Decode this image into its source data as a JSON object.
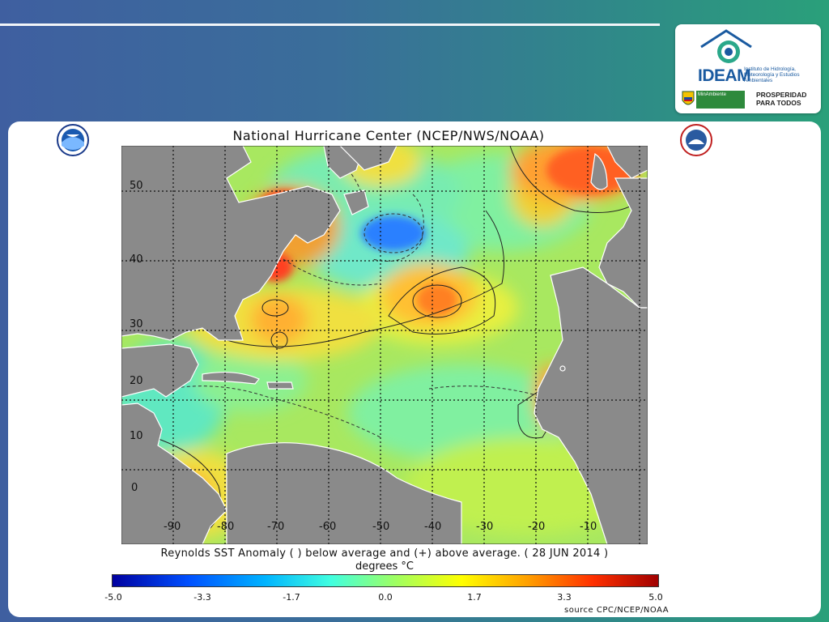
{
  "logo": {
    "name": "IDEAM",
    "description": "Instituto de Hidrología, Meteorología y Estudios Ambientales",
    "ministry": "MinAmbiente",
    "slogan": "PROSPERIDAD PARA TODOS"
  },
  "map": {
    "title": "National Hurricane Center (NCEP/NWS/NOAA)",
    "lon_ticks": [
      "-90",
      "-80",
      "-70",
      "-60",
      "-50",
      "-40",
      "-30",
      "-20",
      "-10"
    ],
    "lat_ticks": [
      "50",
      "40",
      "30",
      "20",
      "10",
      "0"
    ],
    "caption": "Reynolds SST Anomaly ( ) below average and (+) above average. ( 28 JUN 2014 )",
    "units": "degrees °C",
    "colorbar_labels": [
      "-5.0",
      "-3.3",
      "-1.7",
      "0.0",
      "1.7",
      "3.3",
      "5.0"
    ],
    "colorbar_range": [
      -5.0,
      5.0
    ],
    "source": "source  CPC/NCEP/NOAA",
    "colors": {
      "land": "#8a8a8a",
      "ocean_base": "#a8e860"
    }
  }
}
